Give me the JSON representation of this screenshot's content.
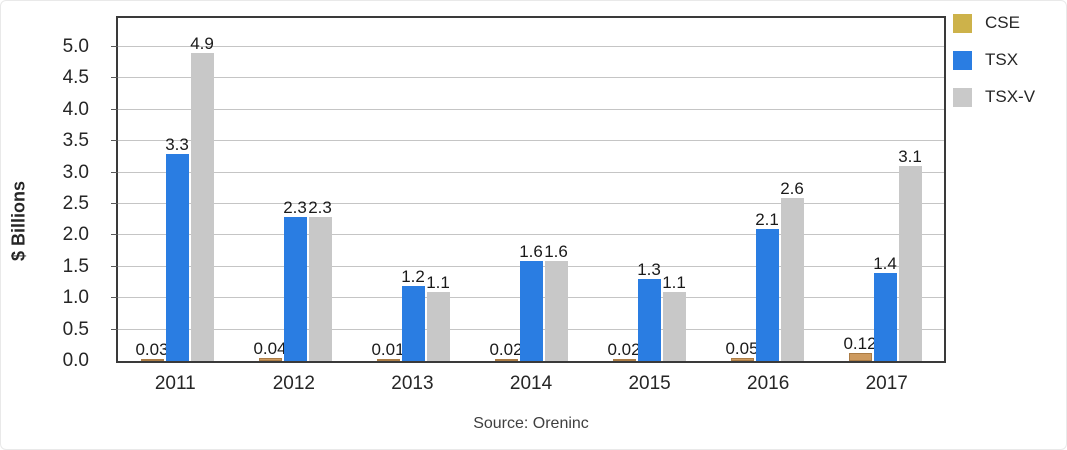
{
  "chart_data": {
    "type": "bar",
    "title": "",
    "ylabel": "$ Billions",
    "xlabel": "",
    "source": "Source: Oreninc",
    "categories": [
      "2011",
      "2012",
      "2013",
      "2014",
      "2015",
      "2016",
      "2017"
    ],
    "series": [
      {
        "name": "CSE",
        "legend_color": "#cdb24a",
        "bar_color": "#cd9a5f",
        "bar_border": "#ab7c45",
        "values": [
          0.03,
          0.04,
          0.01,
          0.02,
          0.02,
          0.05,
          0.12
        ],
        "labels": [
          "0.03",
          "0.04",
          "0.01",
          "0.02",
          "0.02",
          "0.05",
          "0.12"
        ]
      },
      {
        "name": "TSX",
        "legend_color": "#2a7de2",
        "bar_color": "#2a7de2",
        "bar_border": "#2a7de2",
        "values": [
          3.3,
          2.3,
          1.2,
          1.6,
          1.3,
          2.1,
          1.4
        ],
        "labels": [
          "3.3",
          "2.3",
          "1.2",
          "1.6",
          "1.3",
          "2.1",
          "1.4"
        ]
      },
      {
        "name": "TSX-V",
        "legend_color": "#c9c9c9",
        "bar_color": "#c8c8c8",
        "bar_border": "#c8c8c8",
        "values": [
          4.9,
          2.3,
          1.1,
          1.6,
          1.1,
          2.6,
          3.1
        ],
        "labels": [
          "4.9",
          "2.3",
          "1.1",
          "1.6",
          "1.1",
          "2.6",
          "3.1"
        ]
      }
    ],
    "yticks": [
      "0.0",
      "0.5",
      "1.0",
      "1.5",
      "2.0",
      "2.5",
      "3.0",
      "3.5",
      "4.0",
      "4.5",
      "5.0"
    ],
    "ylim": [
      0,
      5.5
    ],
    "grid": true,
    "legend_position": "top-right"
  }
}
